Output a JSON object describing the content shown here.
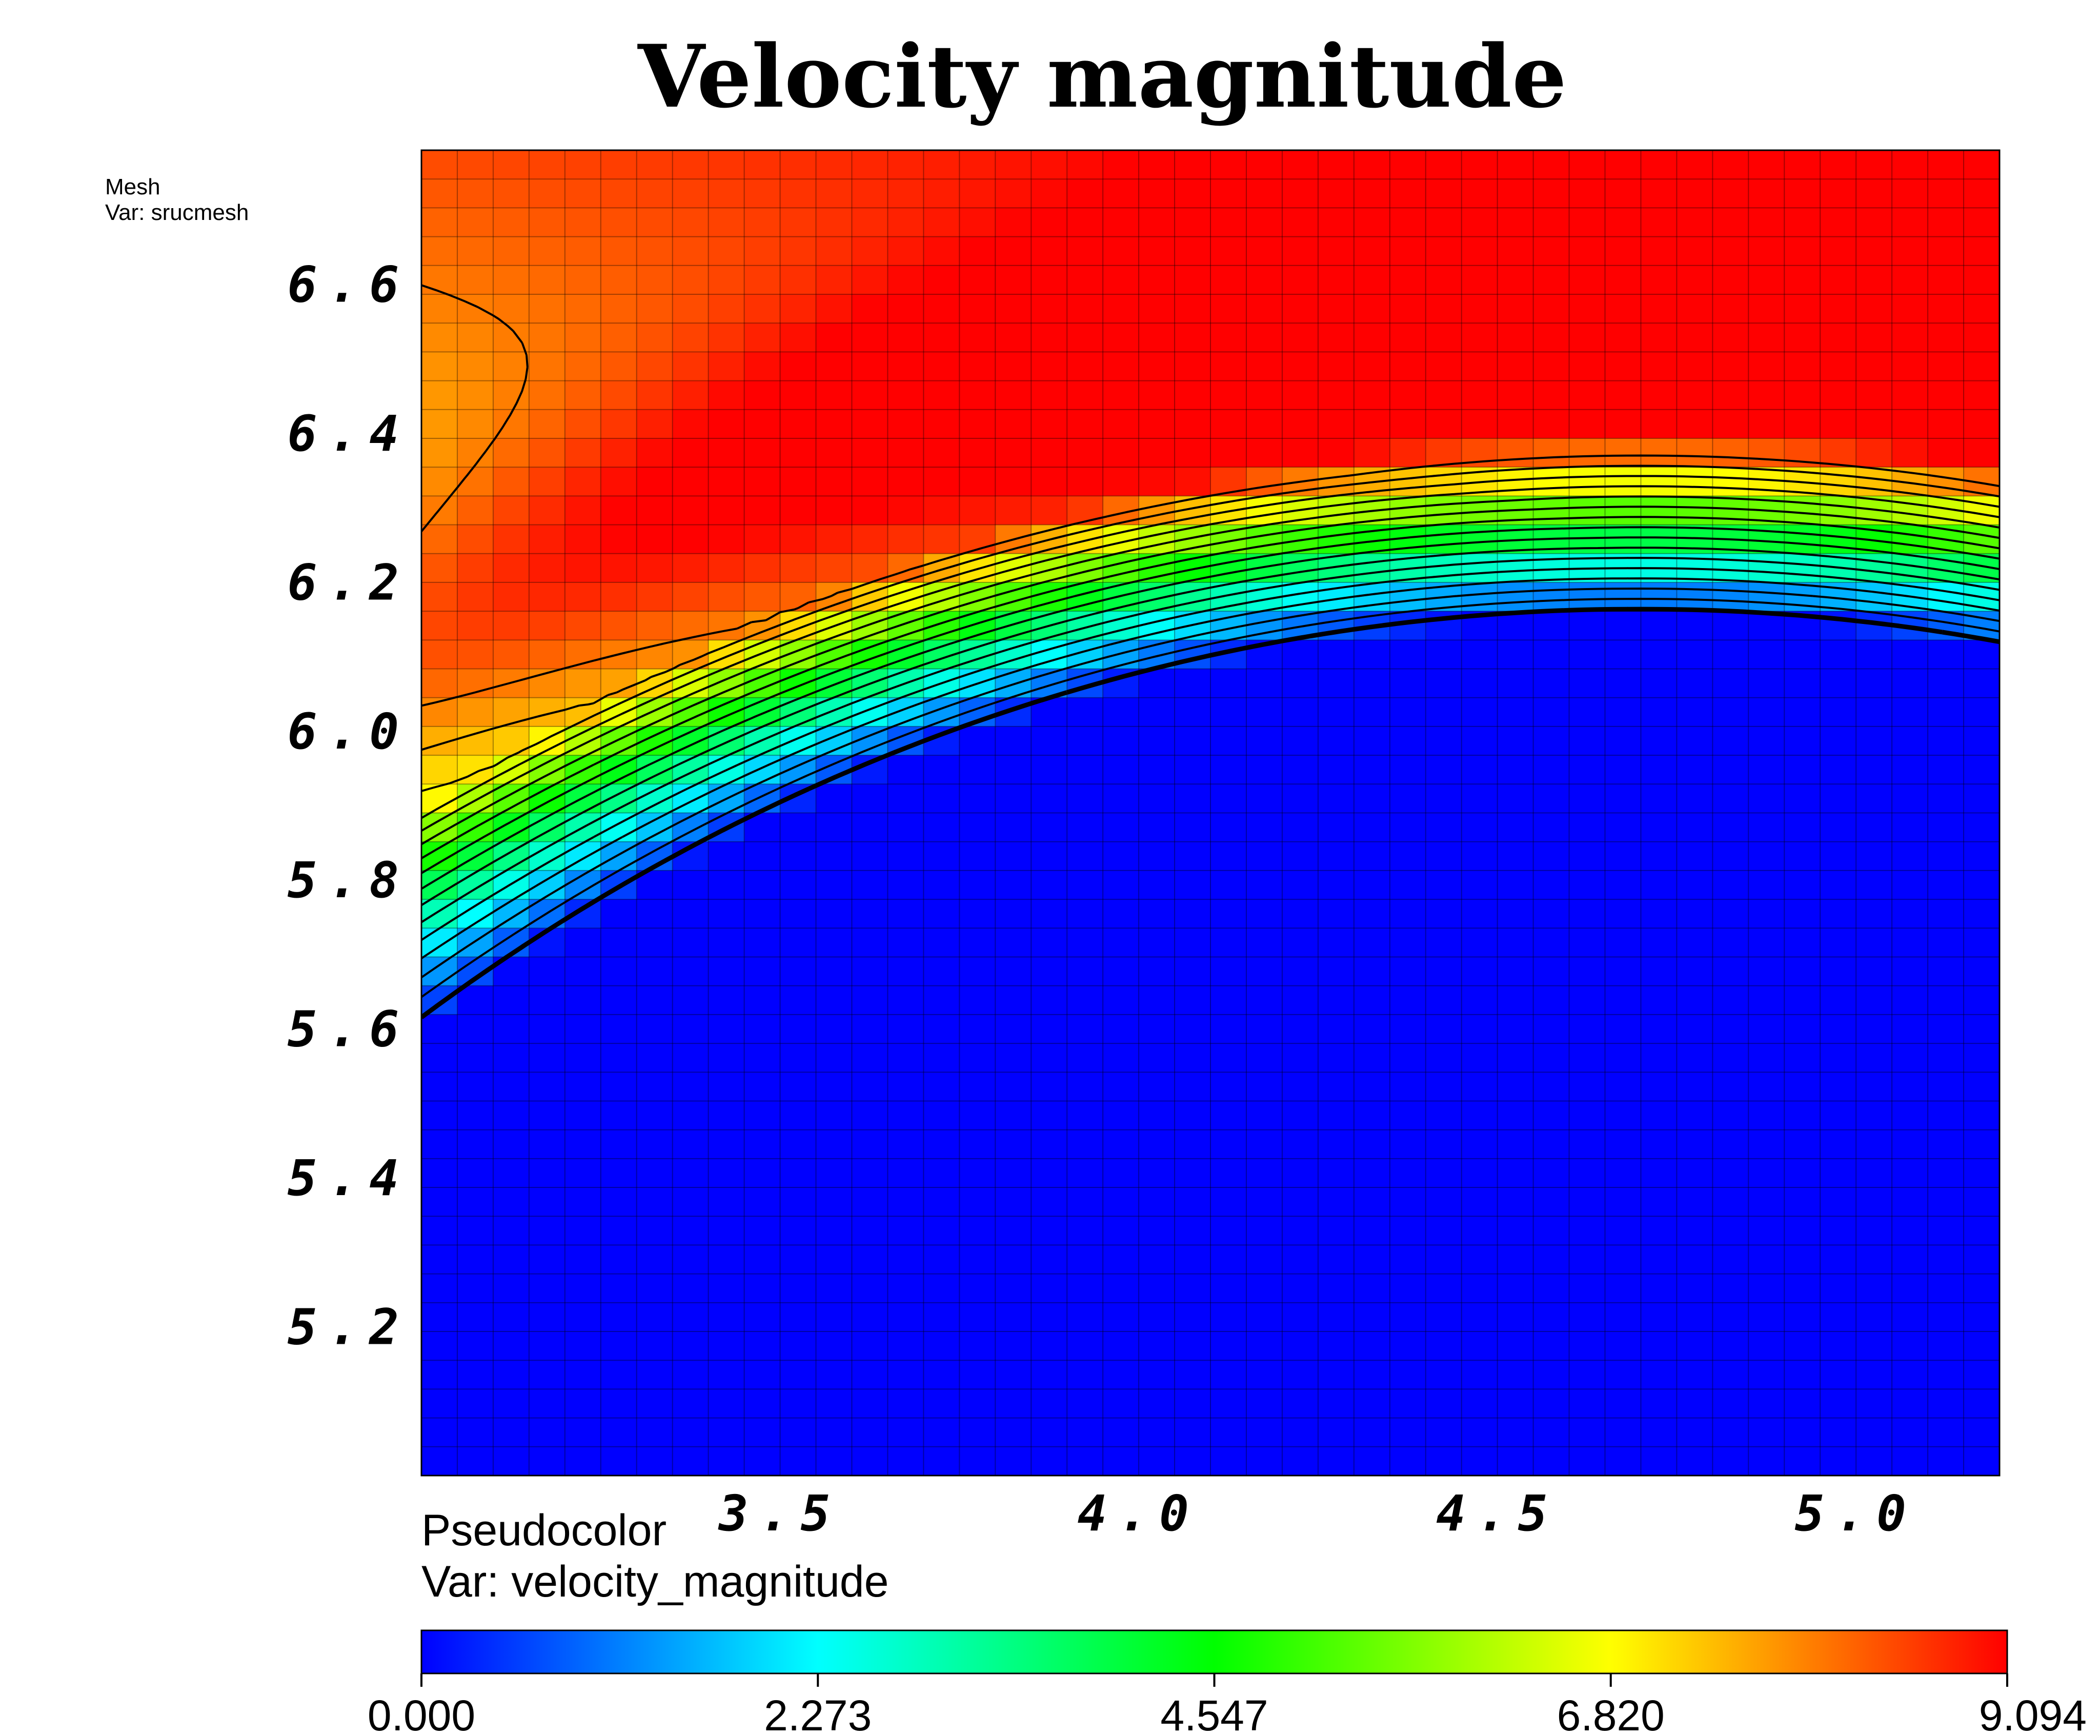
{
  "chart_data": {
    "type": "heatmap",
    "title": "Velocity magnitude",
    "mesh_legend": {
      "line1": "Mesh",
      "line2": "Var: srucmesh"
    },
    "plot_legend": {
      "line1": "Pseudocolor",
      "line2": "Var: velocity_magnitude"
    },
    "xlim": [
      3.0,
      5.2
    ],
    "ylim": [
      5.0,
      6.78
    ],
    "x_ticks": [
      "3.5",
      "4.0",
      "4.5",
      "5.0"
    ],
    "y_ticks": [
      "5.2",
      "5.4",
      "5.6",
      "5.8",
      "6.0",
      "6.2",
      "6.4",
      "6.6"
    ],
    "grid": true,
    "colorbar": {
      "range": [
        0.0,
        9.094
      ],
      "ticks": [
        "0.000",
        "2.273",
        "4.547",
        "6.820",
        "9.094"
      ],
      "colors": [
        "#0000ff",
        "#00ffff",
        "#00ff00",
        "#ffff00",
        "#ff0000"
      ]
    },
    "contour_levels": [
      0.5,
      1.0,
      1.5,
      2.0,
      2.5,
      3.0,
      3.5,
      4.0,
      4.5,
      5.0,
      5.5,
      6.0,
      6.5,
      7.0,
      7.5,
      8.0
    ]
  }
}
